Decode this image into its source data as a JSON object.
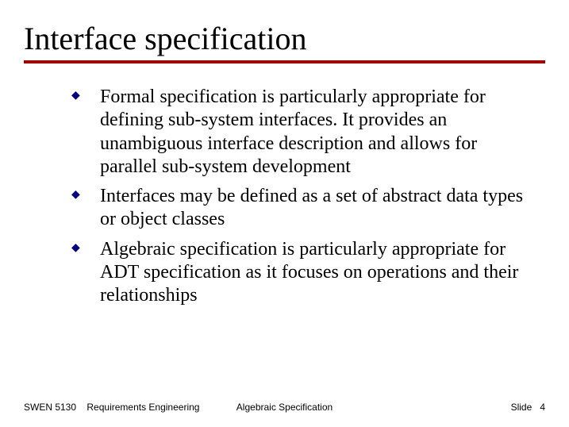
{
  "slide": {
    "title": "Interface specification",
    "rule_color": "#a00000",
    "bullet_color": "#000080",
    "bullets": [
      "Formal specification is particularly appropriate for defining sub-system interfaces. It provides an unambiguous interface description and allows for parallel sub-system development",
      "Interfaces may be defined as a set of abstract data types or object classes",
      "Algebraic specification is particularly appropriate for ADT specification as it focuses on operations and their relationships"
    ],
    "footer": {
      "course_code": "SWEN 5130",
      "course_name": "Requirements Engineering",
      "center": "Algebraic Specification",
      "slide_label": "Slide",
      "slide_number": "4"
    }
  }
}
